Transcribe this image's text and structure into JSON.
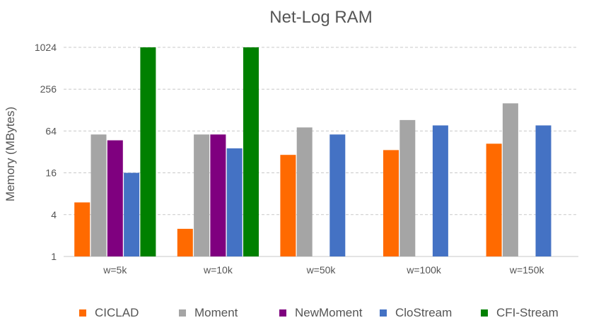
{
  "chart_data": {
    "type": "bar",
    "title": "Net-Log RAM",
    "xlabel": "",
    "ylabel": "Memory (MBytes)",
    "yscale": "log2",
    "ylim": [
      1,
      1024
    ],
    "yticks": [
      1,
      4,
      16,
      64,
      256,
      1024
    ],
    "ytick_labels": [
      "1",
      "4",
      "16",
      "64",
      "256",
      "1024"
    ],
    "grid": true,
    "legend_position": "bottom",
    "categories": [
      "w=5k",
      "w=10k",
      "w=50k",
      "w=100k",
      "w=150k"
    ],
    "series": [
      {
        "name": "CICLAD",
        "color": "#ff6a00",
        "values": [
          6,
          2.5,
          29,
          34,
          42
        ]
      },
      {
        "name": "Moment",
        "color": "#a5a5a5",
        "values": [
          57,
          57,
          72,
          92,
          160
        ]
      },
      {
        "name": "NewMoment",
        "color": "#7f007f",
        "values": [
          47,
          57,
          null,
          null,
          null
        ]
      },
      {
        "name": "CloStream",
        "color": "#4472c4",
        "values": [
          16,
          36,
          57,
          77,
          77
        ]
      },
      {
        "name": "CFI-Stream",
        "color": "#008000",
        "values": [
          1024,
          1024,
          null,
          null,
          null
        ]
      }
    ]
  }
}
